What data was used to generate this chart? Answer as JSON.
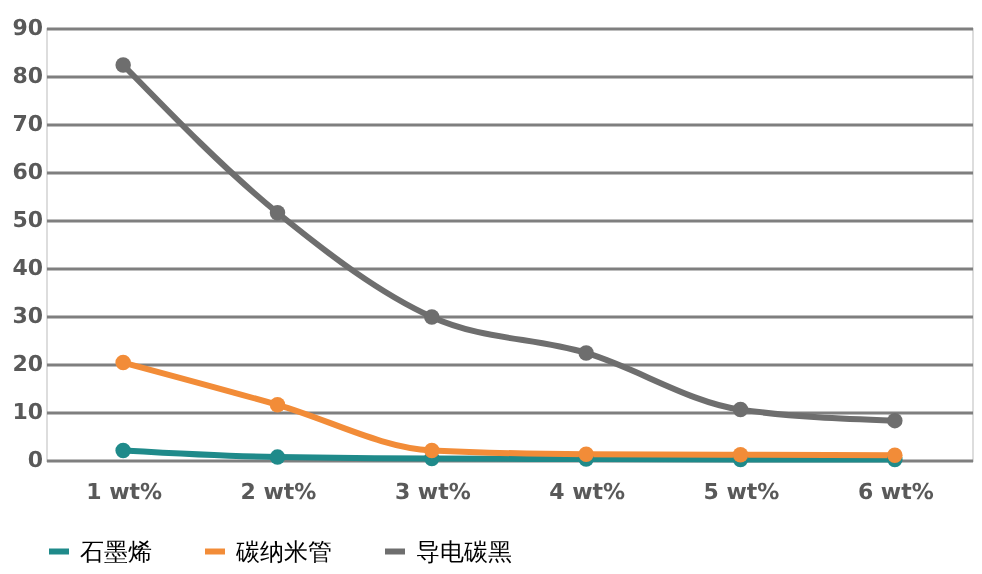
{
  "chart_data": {
    "type": "line",
    "categories": [
      "1 wt%",
      "2 wt%",
      "3 wt%",
      "4 wt%",
      "5 wt%",
      "6 wt%"
    ],
    "series": [
      {
        "name": "石墨烯",
        "color": "#1f8a8a",
        "values": [
          2,
          0.6,
          0.3,
          0.2,
          0.1,
          0.1
        ]
      },
      {
        "name": "碳纳米管",
        "color": "#f28c38",
        "values": [
          20.3,
          11.5,
          2,
          1.2,
          1.1,
          1
        ]
      },
      {
        "name": "导电碳黑",
        "color": "#6e6e6e",
        "values": [
          82.3,
          51.5,
          29.8,
          22.3,
          10.5,
          8.2
        ]
      }
    ],
    "ylim": [
      0,
      90
    ],
    "yticks": [
      0,
      10,
      20,
      30,
      40,
      50,
      60,
      70,
      80,
      90
    ],
    "grid": "y",
    "legend": "bottom",
    "marker": "circle",
    "line_style": "solid"
  }
}
